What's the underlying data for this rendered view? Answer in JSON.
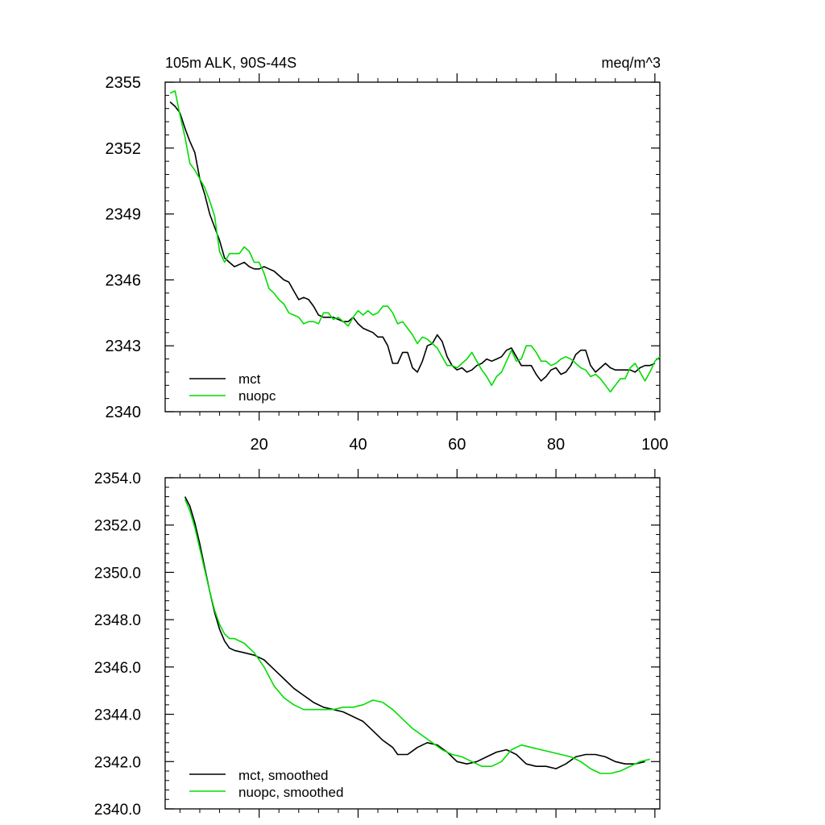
{
  "chart_data": [
    {
      "type": "line",
      "title_left": "105m ALK, 90S-44S",
      "title_right": "meq/m^3",
      "xlim": [
        1,
        101
      ],
      "ylim": [
        2340,
        2355
      ],
      "x_ticks": [
        20,
        40,
        60,
        80,
        100
      ],
      "x_tick_labels": [
        "20",
        "40",
        "60",
        "80",
        "100"
      ],
      "y_ticks": [
        2340,
        2343,
        2346,
        2349,
        2352,
        2355
      ],
      "y_tick_labels": [
        "2340",
        "2343",
        "2346",
        "2349",
        "2352",
        "2355"
      ],
      "legend": "bottom-left",
      "series": [
        {
          "name": "mct",
          "color": "#000000",
          "x_start": 2,
          "values": [
            2354.1,
            2353.9,
            2353.6,
            2352.9,
            2352.3,
            2351.8,
            2350.6,
            2349.9,
            2349.0,
            2348.4,
            2347.8,
            2347.0,
            2346.8,
            2346.6,
            2346.7,
            2346.8,
            2346.6,
            2346.5,
            2346.5,
            2346.6,
            2346.5,
            2346.4,
            2346.2,
            2346.0,
            2345.9,
            2345.5,
            2345.1,
            2345.2,
            2345.1,
            2344.8,
            2344.4,
            2344.3,
            2344.3,
            2344.3,
            2344.2,
            2344.1,
            2344.1,
            2344.3,
            2344.0,
            2343.8,
            2343.7,
            2343.6,
            2343.4,
            2343.4,
            2343.0,
            2342.2,
            2342.2,
            2342.7,
            2342.7,
            2342.0,
            2341.8,
            2342.3,
            2343.0,
            2343.1,
            2343.5,
            2343.2,
            2342.5,
            2342.1,
            2341.9,
            2342.0,
            2341.8,
            2341.9,
            2342.1,
            2342.2,
            2342.4,
            2342.3,
            2342.4,
            2342.5,
            2342.8,
            2342.9,
            2342.5,
            2342.1,
            2342.1,
            2342.1,
            2341.7,
            2341.4,
            2341.6,
            2341.9,
            2342.0,
            2341.7,
            2341.8,
            2342.1,
            2342.6,
            2342.8,
            2342.8,
            2342.1,
            2341.8,
            2342.0,
            2342.2,
            2342.0,
            2341.9,
            2341.9,
            2341.9,
            2341.9,
            2341.8,
            2342.0,
            2342.1,
            2342.1,
            2342.2
          ]
        },
        {
          "name": "nuopc",
          "color": "#00dd00",
          "x_start": 2,
          "values": [
            2354.5,
            2354.6,
            2353.5,
            2352.5,
            2351.3,
            2351.0,
            2350.6,
            2350.2,
            2349.6,
            2348.9,
            2347.3,
            2346.8,
            2347.2,
            2347.2,
            2347.2,
            2347.5,
            2347.3,
            2346.8,
            2346.8,
            2346.3,
            2345.6,
            2345.4,
            2345.1,
            2344.9,
            2344.5,
            2344.4,
            2344.3,
            2344.0,
            2344.1,
            2344.1,
            2344.0,
            2344.5,
            2344.5,
            2344.2,
            2344.3,
            2344.1,
            2343.9,
            2344.3,
            2344.6,
            2344.4,
            2344.6,
            2344.4,
            2344.5,
            2344.8,
            2344.8,
            2344.5,
            2344.0,
            2344.1,
            2343.8,
            2343.5,
            2343.1,
            2343.4,
            2343.3,
            2343.1,
            2342.9,
            2342.5,
            2342.1,
            2342.1,
            2342.0,
            2342.2,
            2342.4,
            2342.7,
            2342.3,
            2341.9,
            2341.6,
            2341.2,
            2341.6,
            2341.8,
            2342.3,
            2342.8,
            2342.3,
            2342.4,
            2343.0,
            2343.0,
            2342.7,
            2342.3,
            2342.3,
            2342.1,
            2342.2,
            2342.4,
            2342.5,
            2342.4,
            2342.2,
            2342.0,
            2341.9,
            2341.6,
            2341.7,
            2341.5,
            2341.2,
            2340.9,
            2341.2,
            2341.5,
            2341.5,
            2342.0,
            2342.2,
            2341.8,
            2341.4,
            2341.8,
            2342.3,
            2342.5
          ]
        }
      ]
    },
    {
      "type": "line",
      "xlim": [
        1,
        101
      ],
      "ylim": [
        2340.0,
        2354.0
      ],
      "y_ticks": [
        2340,
        2342,
        2344,
        2346,
        2348,
        2350,
        2352,
        2354
      ],
      "y_tick_labels": [
        "2340.0",
        "2342.0",
        "2344.0",
        "2346.0",
        "2348.0",
        "2350.0",
        "2352.0",
        "2354.0"
      ],
      "legend": "bottom-left",
      "series": [
        {
          "name": "mct, smoothed",
          "color": "#000000",
          "points": [
            [
              5,
              2353.2
            ],
            [
              6,
              2352.8
            ],
            [
              7,
              2352.1
            ],
            [
              8,
              2351.2
            ],
            [
              9,
              2350.2
            ],
            [
              10,
              2349.2
            ],
            [
              11,
              2348.3
            ],
            [
              12,
              2347.6
            ],
            [
              13,
              2347.1
            ],
            [
              14,
              2346.8
            ],
            [
              15,
              2346.7
            ],
            [
              17,
              2346.6
            ],
            [
              19,
              2346.5
            ],
            [
              21,
              2346.3
            ],
            [
              23,
              2345.9
            ],
            [
              25,
              2345.5
            ],
            [
              27,
              2345.1
            ],
            [
              29,
              2344.8
            ],
            [
              31,
              2344.5
            ],
            [
              33,
              2344.3
            ],
            [
              35,
              2344.2
            ],
            [
              37,
              2344.1
            ],
            [
              39,
              2343.9
            ],
            [
              41,
              2343.7
            ],
            [
              43,
              2343.3
            ],
            [
              45,
              2342.9
            ],
            [
              47,
              2342.6
            ],
            [
              48,
              2342.3
            ],
            [
              50,
              2342.3
            ],
            [
              52,
              2342.6
            ],
            [
              54,
              2342.8
            ],
            [
              56,
              2342.7
            ],
            [
              58,
              2342.4
            ],
            [
              60,
              2342.0
            ],
            [
              62,
              2341.9
            ],
            [
              64,
              2342.0
            ],
            [
              66,
              2342.2
            ],
            [
              68,
              2342.4
            ],
            [
              70,
              2342.5
            ],
            [
              72,
              2342.3
            ],
            [
              74,
              2341.9
            ],
            [
              76,
              2341.8
            ],
            [
              78,
              2341.8
            ],
            [
              80,
              2341.7
            ],
            [
              82,
              2341.9
            ],
            [
              84,
              2342.2
            ],
            [
              86,
              2342.3
            ],
            [
              88,
              2342.3
            ],
            [
              90,
              2342.2
            ],
            [
              92,
              2342.0
            ],
            [
              94,
              2341.9
            ],
            [
              96,
              2341.9
            ],
            [
              98,
              2342.0
            ]
          ]
        },
        {
          "name": "nuopc, smoothed",
          "color": "#00dd00",
          "points": [
            [
              5,
              2353.1
            ],
            [
              6,
              2352.6
            ],
            [
              7,
              2351.9
            ],
            [
              8,
              2351.0
            ],
            [
              9,
              2350.1
            ],
            [
              10,
              2349.2
            ],
            [
              11,
              2348.4
            ],
            [
              12,
              2347.8
            ],
            [
              13,
              2347.4
            ],
            [
              14,
              2347.2
            ],
            [
              15,
              2347.2
            ],
            [
              17,
              2347.0
            ],
            [
              19,
              2346.6
            ],
            [
              21,
              2346.0
            ],
            [
              23,
              2345.2
            ],
            [
              25,
              2344.7
            ],
            [
              27,
              2344.4
            ],
            [
              29,
              2344.2
            ],
            [
              31,
              2344.2
            ],
            [
              33,
              2344.2
            ],
            [
              35,
              2344.2
            ],
            [
              37,
              2344.3
            ],
            [
              39,
              2344.3
            ],
            [
              41,
              2344.4
            ],
            [
              43,
              2344.6
            ],
            [
              45,
              2344.5
            ],
            [
              47,
              2344.2
            ],
            [
              49,
              2343.8
            ],
            [
              51,
              2343.4
            ],
            [
              53,
              2343.1
            ],
            [
              55,
              2342.8
            ],
            [
              57,
              2342.5
            ],
            [
              59,
              2342.3
            ],
            [
              61,
              2342.2
            ],
            [
              63,
              2342.0
            ],
            [
              65,
              2341.8
            ],
            [
              67,
              2341.8
            ],
            [
              69,
              2342.0
            ],
            [
              71,
              2342.5
            ],
            [
              73,
              2342.7
            ],
            [
              75,
              2342.6
            ],
            [
              77,
              2342.5
            ],
            [
              79,
              2342.4
            ],
            [
              81,
              2342.3
            ],
            [
              83,
              2342.2
            ],
            [
              85,
              2342.0
            ],
            [
              87,
              2341.7
            ],
            [
              89,
              2341.5
            ],
            [
              91,
              2341.5
            ],
            [
              93,
              2341.6
            ],
            [
              95,
              2341.8
            ],
            [
              97,
              2342.0
            ],
            [
              99,
              2342.1
            ]
          ]
        }
      ]
    }
  ]
}
